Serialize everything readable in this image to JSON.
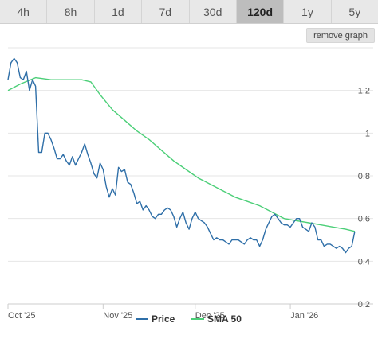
{
  "tabs": [
    {
      "label": "4h",
      "active": false
    },
    {
      "label": "8h",
      "active": false
    },
    {
      "label": "1d",
      "active": false
    },
    {
      "label": "7d",
      "active": false
    },
    {
      "label": "30d",
      "active": false
    },
    {
      "label": "120d",
      "active": true
    },
    {
      "label": "1y",
      "active": false
    },
    {
      "label": "5y",
      "active": false
    }
  ],
  "remove_graph_label": "remove graph",
  "colors": {
    "price": "#2f6fa8",
    "sma": "#4ccf78",
    "grid": "#e6e6e6",
    "axis": "#cccccc"
  },
  "chart_data": {
    "type": "line",
    "title": "",
    "xlabel": "",
    "ylabel": "",
    "ylim": [
      0.2,
      1.4
    ],
    "yticks": [
      0.2,
      0.4,
      0.6,
      0.8,
      1,
      1.2
    ],
    "xlim": [
      0,
      119
    ],
    "xticks": [
      {
        "x": 0,
        "label": "Oct '25"
      },
      {
        "x": 31,
        "label": "Nov '25"
      },
      {
        "x": 61,
        "label": "Dec '25"
      },
      {
        "x": 92,
        "label": "Jan '26"
      }
    ],
    "legend_position": "bottom",
    "grid": true,
    "series": [
      {
        "name": "Price",
        "color_key": "price",
        "points": [
          [
            0,
            1.25
          ],
          [
            1,
            1.33
          ],
          [
            2,
            1.35
          ],
          [
            3,
            1.33
          ],
          [
            4,
            1.26
          ],
          [
            5,
            1.25
          ],
          [
            6,
            1.29
          ],
          [
            7,
            1.2
          ],
          [
            8,
            1.25
          ],
          [
            9,
            1.22
          ],
          [
            10,
            0.91
          ],
          [
            11,
            0.91
          ],
          [
            12,
            1.0
          ],
          [
            13,
            1.0
          ],
          [
            14,
            0.97
          ],
          [
            15,
            0.93
          ],
          [
            16,
            0.88
          ],
          [
            17,
            0.88
          ],
          [
            18,
            0.9
          ],
          [
            19,
            0.87
          ],
          [
            20,
            0.85
          ],
          [
            21,
            0.89
          ],
          [
            22,
            0.85
          ],
          [
            23,
            0.88
          ],
          [
            24,
            0.91
          ],
          [
            25,
            0.95
          ],
          [
            26,
            0.9
          ],
          [
            27,
            0.86
          ],
          [
            28,
            0.81
          ],
          [
            29,
            0.79
          ],
          [
            30,
            0.86
          ],
          [
            31,
            0.83
          ],
          [
            32,
            0.75
          ],
          [
            33,
            0.7
          ],
          [
            34,
            0.74
          ],
          [
            35,
            0.71
          ],
          [
            36,
            0.84
          ],
          [
            37,
            0.82
          ],
          [
            38,
            0.83
          ],
          [
            39,
            0.77
          ],
          [
            40,
            0.76
          ],
          [
            41,
            0.72
          ],
          [
            42,
            0.67
          ],
          [
            43,
            0.68
          ],
          [
            44,
            0.64
          ],
          [
            45,
            0.66
          ],
          [
            46,
            0.64
          ],
          [
            47,
            0.61
          ],
          [
            48,
            0.6
          ],
          [
            49,
            0.62
          ],
          [
            50,
            0.62
          ],
          [
            51,
            0.64
          ],
          [
            52,
            0.65
          ],
          [
            53,
            0.64
          ],
          [
            54,
            0.61
          ],
          [
            55,
            0.56
          ],
          [
            56,
            0.6
          ],
          [
            57,
            0.63
          ],
          [
            58,
            0.58
          ],
          [
            59,
            0.55
          ],
          [
            60,
            0.6
          ],
          [
            61,
            0.63
          ],
          [
            62,
            0.6
          ],
          [
            63,
            0.59
          ],
          [
            64,
            0.58
          ],
          [
            65,
            0.56
          ],
          [
            66,
            0.53
          ],
          [
            67,
            0.5
          ],
          [
            68,
            0.51
          ],
          [
            69,
            0.5
          ],
          [
            70,
            0.5
          ],
          [
            71,
            0.49
          ],
          [
            72,
            0.48
          ],
          [
            73,
            0.5
          ],
          [
            74,
            0.5
          ],
          [
            75,
            0.5
          ],
          [
            76,
            0.49
          ],
          [
            77,
            0.48
          ],
          [
            78,
            0.5
          ],
          [
            79,
            0.51
          ],
          [
            80,
            0.5
          ],
          [
            81,
            0.5
          ],
          [
            82,
            0.47
          ],
          [
            83,
            0.5
          ],
          [
            84,
            0.55
          ],
          [
            85,
            0.58
          ],
          [
            86,
            0.61
          ],
          [
            87,
            0.62
          ],
          [
            88,
            0.6
          ],
          [
            89,
            0.58
          ],
          [
            90,
            0.57
          ],
          [
            91,
            0.57
          ],
          [
            92,
            0.56
          ],
          [
            93,
            0.58
          ],
          [
            94,
            0.6
          ],
          [
            95,
            0.6
          ],
          [
            96,
            0.56
          ],
          [
            97,
            0.55
          ],
          [
            98,
            0.54
          ],
          [
            99,
            0.58
          ],
          [
            100,
            0.56
          ],
          [
            101,
            0.5
          ],
          [
            102,
            0.5
          ],
          [
            103,
            0.47
          ],
          [
            104,
            0.48
          ],
          [
            105,
            0.48
          ],
          [
            106,
            0.47
          ],
          [
            107,
            0.46
          ],
          [
            108,
            0.47
          ],
          [
            109,
            0.46
          ],
          [
            110,
            0.44
          ],
          [
            111,
            0.46
          ],
          [
            112,
            0.47
          ],
          [
            113,
            0.54
          ]
        ]
      },
      {
        "name": "SMA 50",
        "color_key": "sma",
        "points": [
          [
            0,
            1.2
          ],
          [
            4,
            1.23
          ],
          [
            9,
            1.26
          ],
          [
            14,
            1.25
          ],
          [
            19,
            1.25
          ],
          [
            24,
            1.25
          ],
          [
            27,
            1.24
          ],
          [
            30,
            1.18
          ],
          [
            34,
            1.11
          ],
          [
            38,
            1.06
          ],
          [
            42,
            1.01
          ],
          [
            46,
            0.97
          ],
          [
            50,
            0.92
          ],
          [
            54,
            0.87
          ],
          [
            58,
            0.83
          ],
          [
            62,
            0.79
          ],
          [
            66,
            0.76
          ],
          [
            70,
            0.73
          ],
          [
            74,
            0.7
          ],
          [
            78,
            0.68
          ],
          [
            82,
            0.66
          ],
          [
            86,
            0.63
          ],
          [
            90,
            0.6
          ],
          [
            94,
            0.59
          ],
          [
            98,
            0.58
          ],
          [
            102,
            0.57
          ],
          [
            106,
            0.56
          ],
          [
            110,
            0.55
          ],
          [
            113,
            0.54
          ]
        ]
      }
    ]
  }
}
